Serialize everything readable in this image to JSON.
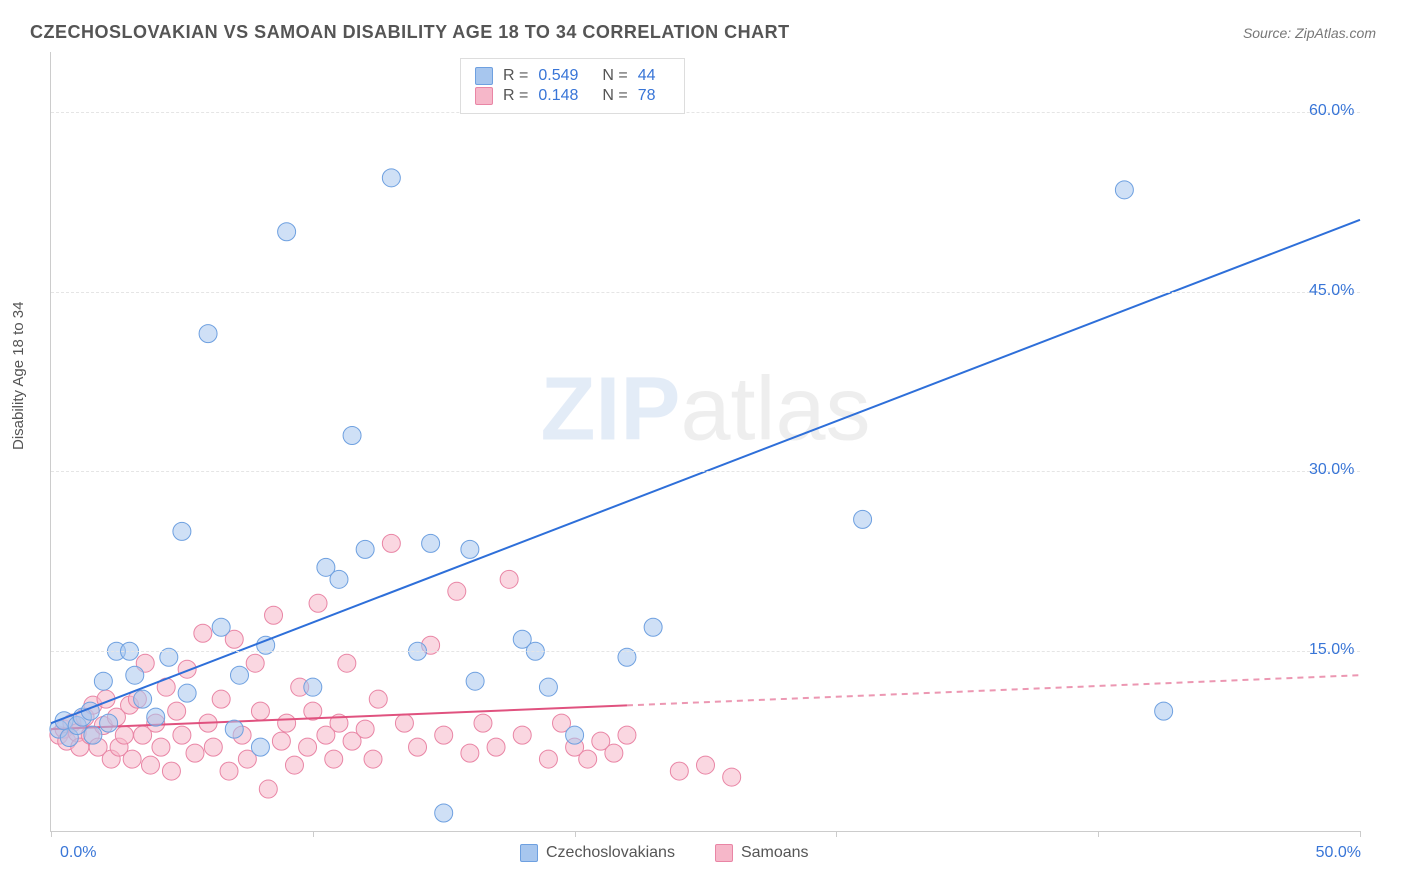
{
  "header": {
    "title": "CZECHOSLOVAKIAN VS SAMOAN DISABILITY AGE 18 TO 34 CORRELATION CHART",
    "source": "Source: ZipAtlas.com"
  },
  "ylabel": "Disability Age 18 to 34",
  "watermark": {
    "zip": "ZIP",
    "atlas": "atlas"
  },
  "chart": {
    "type": "scatter",
    "xlim": [
      0,
      50
    ],
    "ylim": [
      0,
      65
    ],
    "xticks_pct": [
      0,
      10,
      20,
      30,
      40,
      50
    ],
    "ygrid": [
      15,
      30,
      45,
      60
    ],
    "ytick_labels": [
      "15.0%",
      "30.0%",
      "45.0%",
      "60.0%"
    ],
    "x_axis_min_label": "0.0%",
    "x_axis_max_label": "50.0%",
    "bg_color": "#ffffff",
    "grid_color": "#e5e5e5",
    "axis_color": "#cccccc",
    "marker_radius": 9,
    "marker_opacity": 0.55,
    "series": {
      "czech": {
        "label": "Czechoslovakians",
        "color_fill": "#a7c6ee",
        "color_stroke": "#6ea0e0",
        "R": "0.549",
        "N": "44",
        "trend": {
          "x1": 0,
          "y1": 9.0,
          "x2": 50,
          "y2": 51.0,
          "solid_until_x": 50,
          "color": "#2e6fd9",
          "width": 2
        },
        "points": [
          [
            0.3,
            8.5
          ],
          [
            0.5,
            9.2
          ],
          [
            0.7,
            7.8
          ],
          [
            1.0,
            8.8
          ],
          [
            1.2,
            9.5
          ],
          [
            1.5,
            10.0
          ],
          [
            1.6,
            8.0
          ],
          [
            2.0,
            12.5
          ],
          [
            2.2,
            9.0
          ],
          [
            2.5,
            15.0
          ],
          [
            3.0,
            15.0
          ],
          [
            3.2,
            13.0
          ],
          [
            3.5,
            11.0
          ],
          [
            4.0,
            9.5
          ],
          [
            4.5,
            14.5
          ],
          [
            5.0,
            25.0
          ],
          [
            5.2,
            11.5
          ],
          [
            6.0,
            41.5
          ],
          [
            6.5,
            17.0
          ],
          [
            7.0,
            8.5
          ],
          [
            7.2,
            13.0
          ],
          [
            8.0,
            7.0
          ],
          [
            8.2,
            15.5
          ],
          [
            9.0,
            50.0
          ],
          [
            10.0,
            12.0
          ],
          [
            10.5,
            22.0
          ],
          [
            11.0,
            21.0
          ],
          [
            11.5,
            33.0
          ],
          [
            12.0,
            23.5
          ],
          [
            13.0,
            54.5
          ],
          [
            14.0,
            15.0
          ],
          [
            14.5,
            24.0
          ],
          [
            15.0,
            1.5
          ],
          [
            16.0,
            23.5
          ],
          [
            16.2,
            12.5
          ],
          [
            18.0,
            16.0
          ],
          [
            18.5,
            15.0
          ],
          [
            19.0,
            12.0
          ],
          [
            20.0,
            8.0
          ],
          [
            22.0,
            14.5
          ],
          [
            23.0,
            17.0
          ],
          [
            31.0,
            26.0
          ],
          [
            41.0,
            53.5
          ],
          [
            42.5,
            10.0
          ]
        ]
      },
      "samoan": {
        "label": "Samoans",
        "color_fill": "#f6b7c9",
        "color_stroke": "#e985a5",
        "R": "0.148",
        "N": "78",
        "trend": {
          "x1": 0,
          "y1": 8.5,
          "x2": 50,
          "y2": 13.0,
          "solid_until_x": 22,
          "color": "#e0527f",
          "width": 2
        },
        "points": [
          [
            0.3,
            8.0
          ],
          [
            0.5,
            8.5
          ],
          [
            0.6,
            7.5
          ],
          [
            0.8,
            9.0
          ],
          [
            1.0,
            8.2
          ],
          [
            1.1,
            7.0
          ],
          [
            1.3,
            9.5
          ],
          [
            1.5,
            8.0
          ],
          [
            1.6,
            10.5
          ],
          [
            1.8,
            7.0
          ],
          [
            2.0,
            8.8
          ],
          [
            2.1,
            11.0
          ],
          [
            2.3,
            6.0
          ],
          [
            2.5,
            9.5
          ],
          [
            2.6,
            7.0
          ],
          [
            2.8,
            8.0
          ],
          [
            3.0,
            10.5
          ],
          [
            3.1,
            6.0
          ],
          [
            3.3,
            11.0
          ],
          [
            3.5,
            8.0
          ],
          [
            3.6,
            14.0
          ],
          [
            3.8,
            5.5
          ],
          [
            4.0,
            9.0
          ],
          [
            4.2,
            7.0
          ],
          [
            4.4,
            12.0
          ],
          [
            4.6,
            5.0
          ],
          [
            4.8,
            10.0
          ],
          [
            5.0,
            8.0
          ],
          [
            5.2,
            13.5
          ],
          [
            5.5,
            6.5
          ],
          [
            5.8,
            16.5
          ],
          [
            6.0,
            9.0
          ],
          [
            6.2,
            7.0
          ],
          [
            6.5,
            11.0
          ],
          [
            6.8,
            5.0
          ],
          [
            7.0,
            16.0
          ],
          [
            7.3,
            8.0
          ],
          [
            7.5,
            6.0
          ],
          [
            7.8,
            14.0
          ],
          [
            8.0,
            10.0
          ],
          [
            8.3,
            3.5
          ],
          [
            8.5,
            18.0
          ],
          [
            8.8,
            7.5
          ],
          [
            9.0,
            9.0
          ],
          [
            9.3,
            5.5
          ],
          [
            9.5,
            12.0
          ],
          [
            9.8,
            7.0
          ],
          [
            10.0,
            10.0
          ],
          [
            10.2,
            19.0
          ],
          [
            10.5,
            8.0
          ],
          [
            10.8,
            6.0
          ],
          [
            11.0,
            9.0
          ],
          [
            11.3,
            14.0
          ],
          [
            11.5,
            7.5
          ],
          [
            12.0,
            8.5
          ],
          [
            12.3,
            6.0
          ],
          [
            12.5,
            11.0
          ],
          [
            13.0,
            24.0
          ],
          [
            13.5,
            9.0
          ],
          [
            14.0,
            7.0
          ],
          [
            14.5,
            15.5
          ],
          [
            15.0,
            8.0
          ],
          [
            15.5,
            20.0
          ],
          [
            16.0,
            6.5
          ],
          [
            16.5,
            9.0
          ],
          [
            17.0,
            7.0
          ],
          [
            17.5,
            21.0
          ],
          [
            18.0,
            8.0
          ],
          [
            19.0,
            6.0
          ],
          [
            19.5,
            9.0
          ],
          [
            20.0,
            7.0
          ],
          [
            20.5,
            6.0
          ],
          [
            21.0,
            7.5
          ],
          [
            21.5,
            6.5
          ],
          [
            22.0,
            8.0
          ],
          [
            24.0,
            5.0
          ],
          [
            25.0,
            5.5
          ],
          [
            26.0,
            4.5
          ]
        ]
      }
    }
  },
  "legend_top": {
    "R_label": "R =",
    "N_label": "N ="
  },
  "fontsize": {
    "title": 18,
    "axis": 16,
    "label": 15
  },
  "colors": {
    "text_primary": "#555555",
    "axis_value": "#3875d7"
  }
}
